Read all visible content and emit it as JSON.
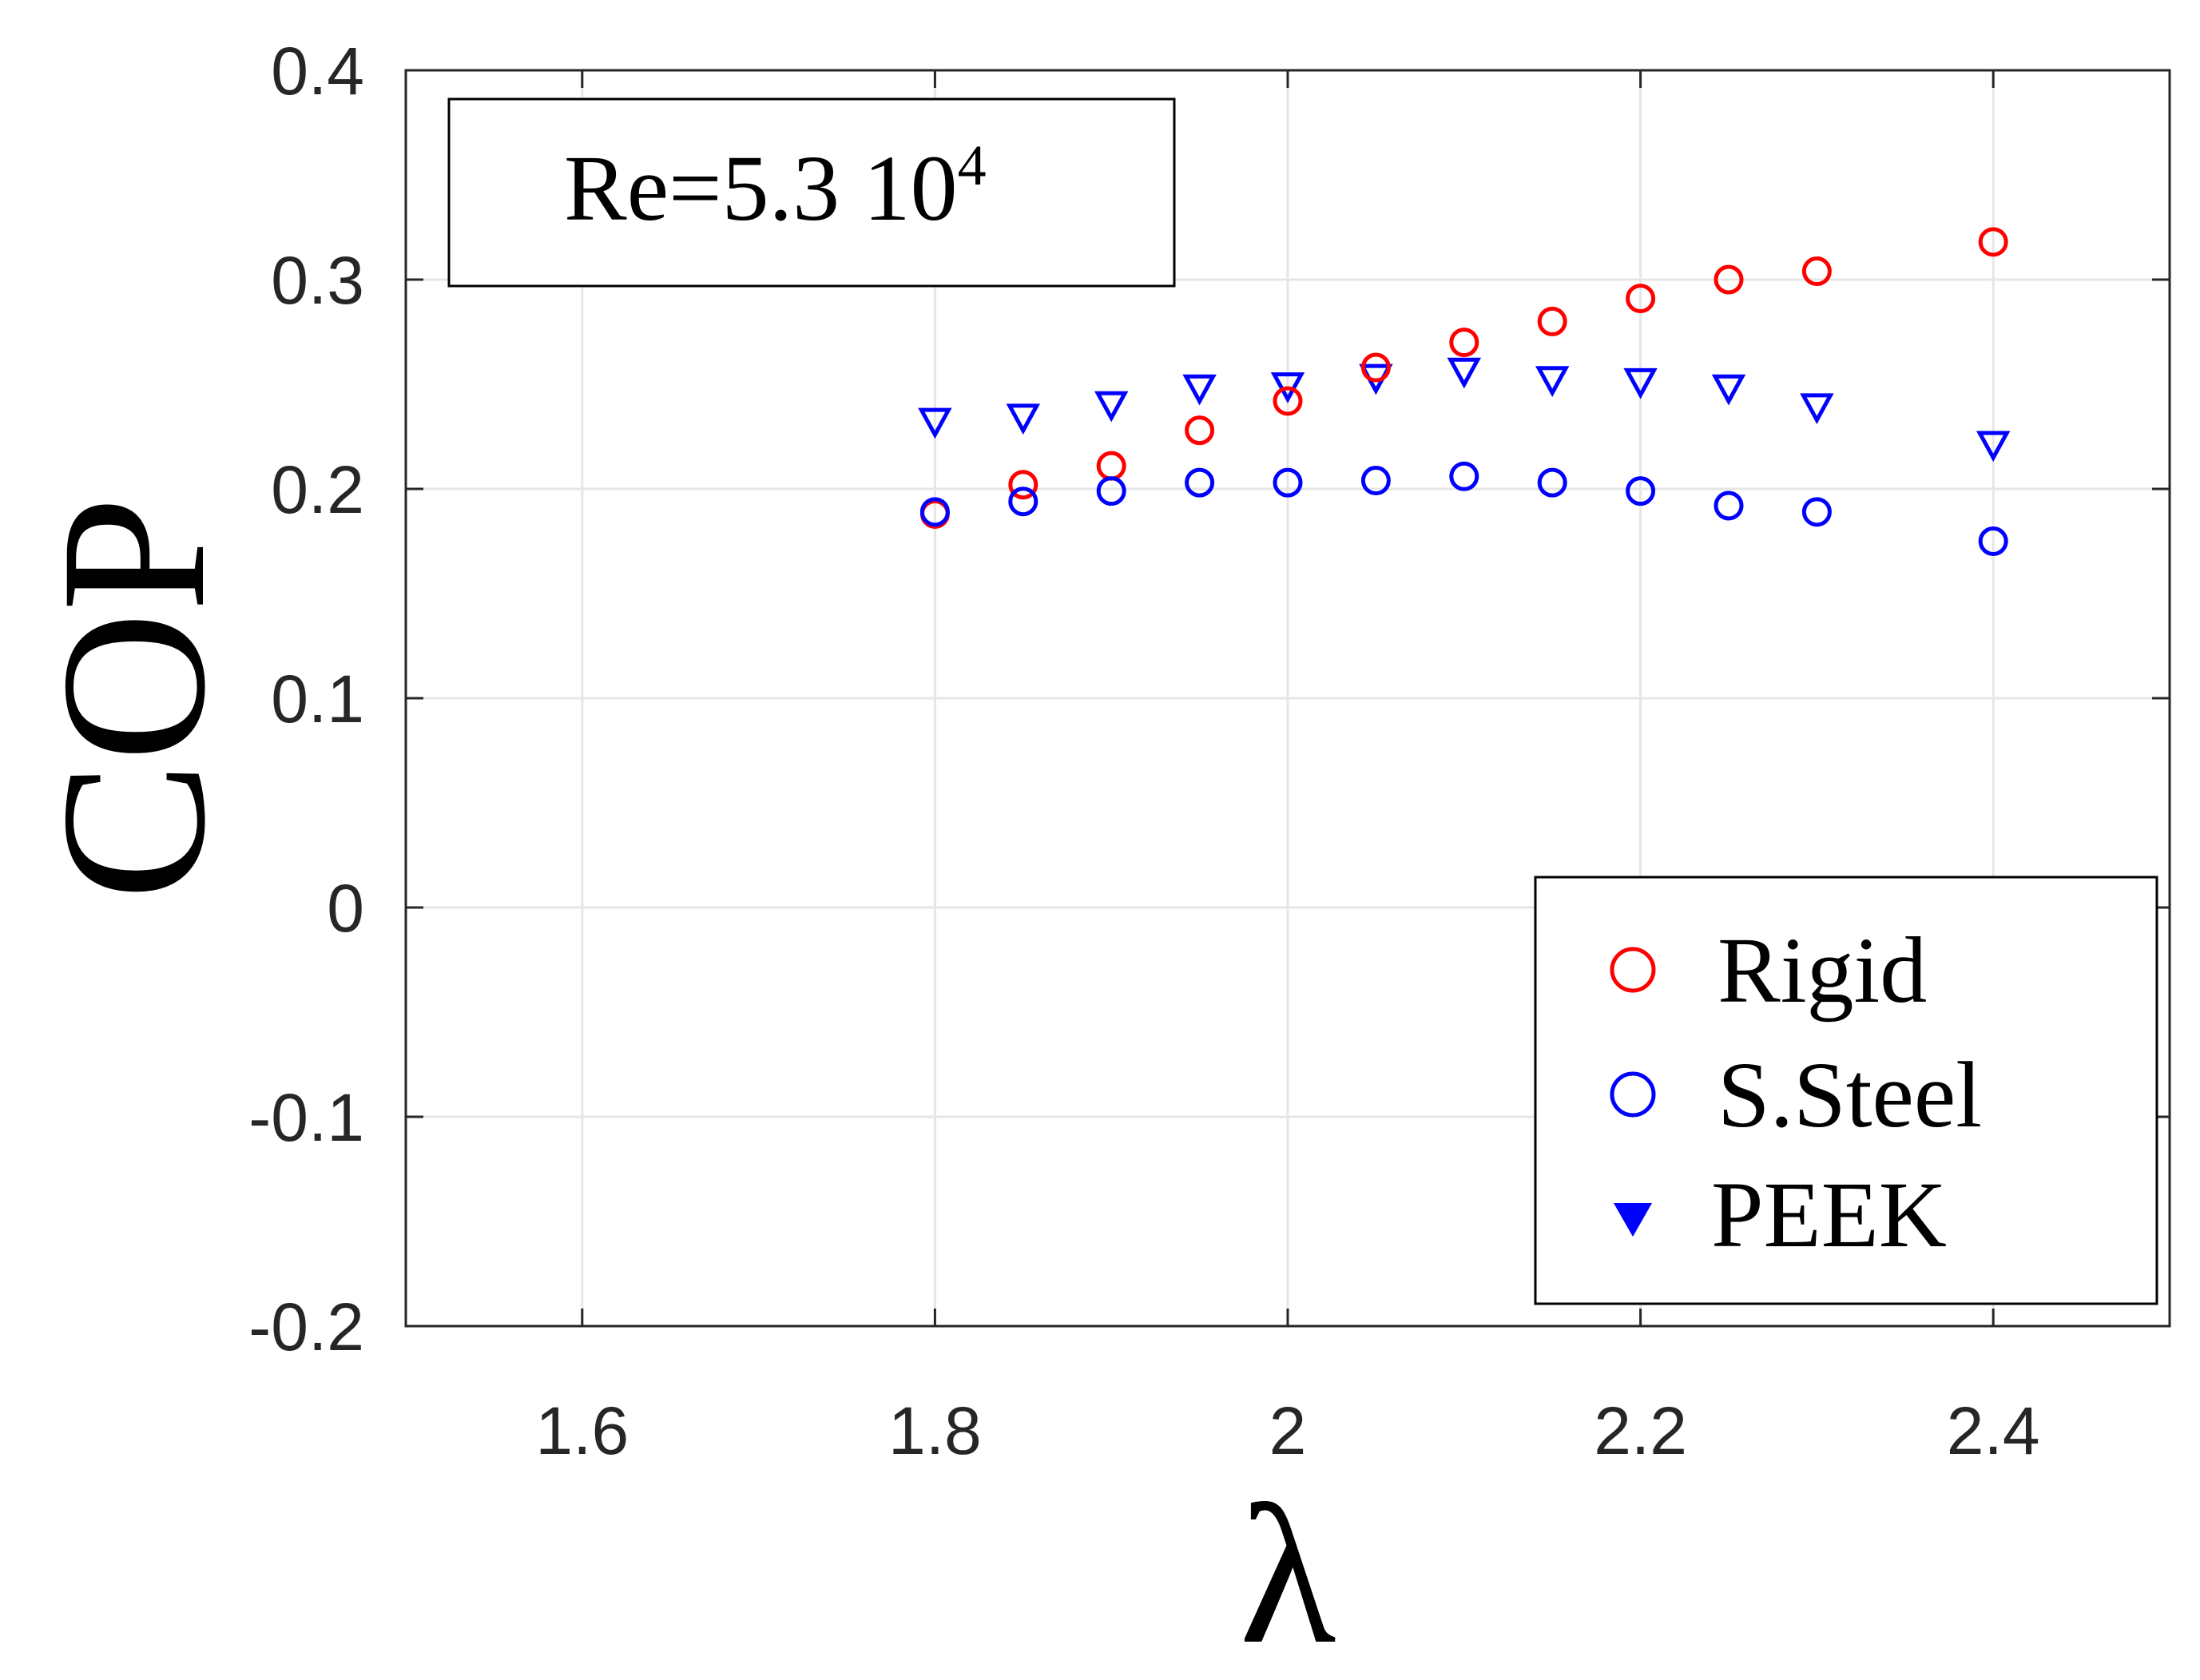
{
  "chart_data": {
    "type": "scatter",
    "xlabel": "λ",
    "ylabel": "COP",
    "xlim": [
      1.5,
      2.5
    ],
    "ylim": [
      -0.2,
      0.4
    ],
    "xticks": [
      1.6,
      1.8,
      2.0,
      2.2,
      2.4
    ],
    "xtick_labels": [
      "1.6",
      "1.8",
      "2",
      "2.2",
      "2.4"
    ],
    "yticks": [
      -0.2,
      -0.1,
      0,
      0.1,
      0.2,
      0.3,
      0.4
    ],
    "ytick_labels": [
      "-0.2",
      "-0.1",
      "0",
      "0.1",
      "0.2",
      "0.3",
      "0.4"
    ],
    "grid": true,
    "annotation": {
      "base": "Re=5.3 10",
      "exponent": "4"
    },
    "legend_position": "bottom-right",
    "series": [
      {
        "name": "Rigid",
        "marker": "circle-open",
        "color": "#ff0000",
        "x": [
          1.8,
          1.85,
          1.9,
          1.95,
          2.0,
          2.05,
          2.1,
          2.15,
          2.2,
          2.25,
          2.3,
          2.4
        ],
        "y": [
          0.188,
          0.202,
          0.211,
          0.228,
          0.242,
          0.258,
          0.27,
          0.28,
          0.291,
          0.3,
          0.304,
          0.318
        ]
      },
      {
        "name": "S.Steel",
        "marker": "circle-open",
        "color": "#0000ff",
        "x": [
          1.8,
          1.85,
          1.9,
          1.95,
          2.0,
          2.05,
          2.1,
          2.15,
          2.2,
          2.25,
          2.3,
          2.4
        ],
        "y": [
          0.189,
          0.194,
          0.199,
          0.203,
          0.203,
          0.204,
          0.206,
          0.203,
          0.199,
          0.192,
          0.189,
          0.175
        ]
      },
      {
        "name": "PEEK",
        "marker": "triangle-down",
        "color": "#0000ff",
        "x": [
          1.8,
          1.85,
          1.9,
          1.95,
          2.0,
          2.05,
          2.1,
          2.15,
          2.2,
          2.25,
          2.3,
          2.4
        ],
        "y": [
          0.232,
          0.234,
          0.24,
          0.248,
          0.249,
          0.253,
          0.256,
          0.252,
          0.251,
          0.248,
          0.239,
          0.221
        ]
      }
    ]
  }
}
